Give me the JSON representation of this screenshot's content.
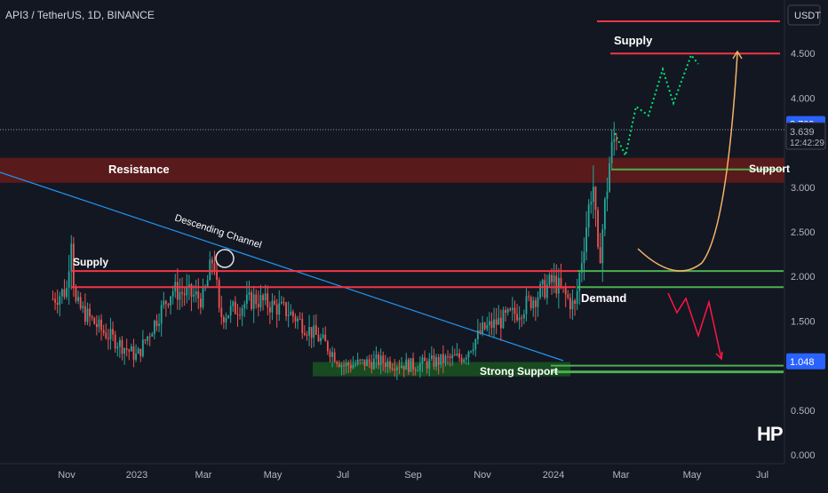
{
  "header": {
    "symbol": "API3 / TetherUS, 1D, BINANCE"
  },
  "watermark": "HP",
  "price_axis": {
    "currency_button": "USDT",
    "ticks": [
      {
        "label": "4.500",
        "value": 4.5
      },
      {
        "label": "4.000",
        "value": 4.0
      },
      {
        "label": "3.000",
        "value": 3.0
      },
      {
        "label": "2.500",
        "value": 2.5
      },
      {
        "label": "2.000",
        "value": 2.0
      },
      {
        "label": "1.500",
        "value": 1.5
      },
      {
        "label": "0.500",
        "value": 0.5
      },
      {
        "label": "0.000",
        "value": 0.0
      }
    ],
    "badges": [
      {
        "label": "3.709",
        "value": 3.709,
        "color": "#2962ff",
        "kind": "blue"
      },
      {
        "label": "1.048",
        "value": 1.048,
        "color": "#2962ff",
        "kind": "blue"
      }
    ],
    "last_price": {
      "price": "3.639",
      "countdown": "12:42:29",
      "value": 3.639
    }
  },
  "time_axis": [
    "Nov",
    "2023",
    "Mar",
    "May",
    "Jul",
    "Sep",
    "Nov",
    "2024",
    "Mar",
    "May",
    "Jul"
  ],
  "colors": {
    "background": "#131722",
    "up": "#26a69a",
    "down": "#ef5350",
    "trend": "#2196f3",
    "resistance_zone": "#5c1a1a",
    "support_zone": "#1b5e20",
    "support_line": "#4caf50",
    "red_line": "#f23645",
    "projection_up": "#00e676",
    "projection_down": "#ff1744",
    "curve": "#f5b469"
  },
  "annotations": {
    "resistance": "Resistance",
    "supply_low": "Supply",
    "supply_high": "Supply",
    "descending_channel": "Descending Channel",
    "demand": "Demand",
    "support": "Support",
    "strong_support": "Strong Support"
  },
  "chart_data": {
    "type": "candlestick",
    "title": "API3 / TetherUS, 1D, BINANCE",
    "x_range": [
      "2022-10",
      "2024-07"
    ],
    "ylim": [
      0.0,
      4.9
    ],
    "grid": false,
    "levels": {
      "supply_top": 4.5,
      "resistance_zone": [
        3.05,
        3.33
      ],
      "support": 3.2,
      "supply_bottom": 2.06,
      "supply_bottom_2": 1.88,
      "demand": 2.06,
      "demand_2": 1.88,
      "strong_support_zone": [
        0.88,
        1.04
      ],
      "strong_support": 0.93
    },
    "price_path": [
      {
        "date": "2022-10-20",
        "price": 1.75
      },
      {
        "date": "2022-11-01",
        "price": 1.85
      },
      {
        "date": "2022-11-05",
        "price": 2.5
      },
      {
        "date": "2022-11-08",
        "price": 1.7
      },
      {
        "date": "2022-12-01",
        "price": 1.4
      },
      {
        "date": "2023-01-01",
        "price": 1.1
      },
      {
        "date": "2023-02-01",
        "price": 1.85
      },
      {
        "date": "2023-03-01",
        "price": 1.75
      },
      {
        "date": "2023-03-10",
        "price": 2.25
      },
      {
        "date": "2023-03-15",
        "price": 1.55
      },
      {
        "date": "2023-04-15",
        "price": 1.75
      },
      {
        "date": "2023-05-15",
        "price": 1.6
      },
      {
        "date": "2023-06-15",
        "price": 1.25
      },
      {
        "date": "2023-07-01",
        "price": 1.0
      },
      {
        "date": "2023-08-01",
        "price": 1.05
      },
      {
        "date": "2023-09-01",
        "price": 1.0
      },
      {
        "date": "2023-10-15",
        "price": 1.1
      },
      {
        "date": "2023-11-01",
        "price": 1.4
      },
      {
        "date": "2023-12-01",
        "price": 1.6
      },
      {
        "date": "2024-01-01",
        "price": 1.95
      },
      {
        "date": "2024-01-20",
        "price": 1.65
      },
      {
        "date": "2024-02-05",
        "price": 3.1
      },
      {
        "date": "2024-02-10",
        "price": 2.1
      },
      {
        "date": "2024-02-20",
        "price": 3.3
      },
      {
        "date": "2024-02-26",
        "price": 3.639
      }
    ]
  }
}
